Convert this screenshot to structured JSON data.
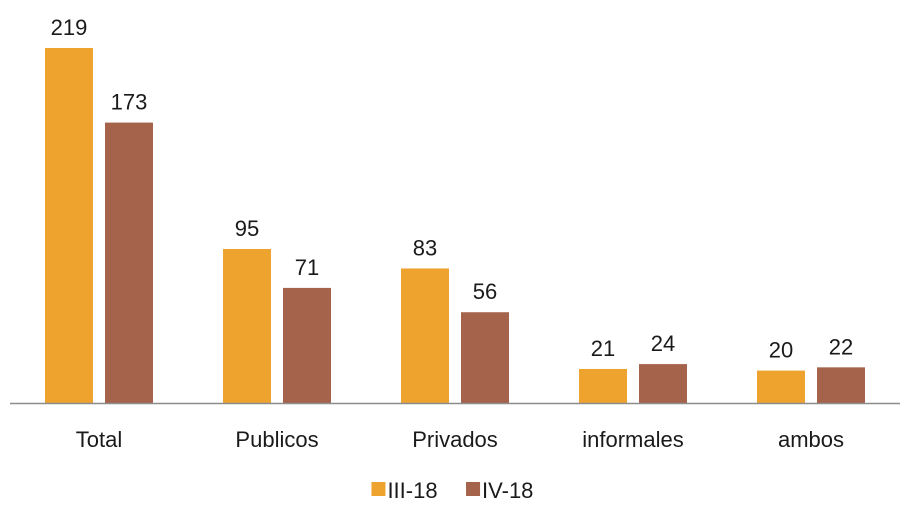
{
  "chart_data": {
    "type": "bar",
    "title": "",
    "xlabel": "",
    "ylabel": "",
    "categories": [
      "Total",
      "Publicos",
      "Privados",
      "informales",
      "ambos"
    ],
    "series": [
      {
        "name": "III-18",
        "values": [
          219,
          95,
          83,
          21,
          20
        ],
        "color": "#EDA32E"
      },
      {
        "name": "IV-18",
        "values": [
          173,
          71,
          56,
          24,
          22
        ],
        "color": "#A5634C"
      }
    ],
    "ylim": [
      0,
      219
    ],
    "grid": false,
    "show_data_labels": true,
    "legend_position": "bottom-center",
    "axis_color": "#8C8C8C"
  }
}
